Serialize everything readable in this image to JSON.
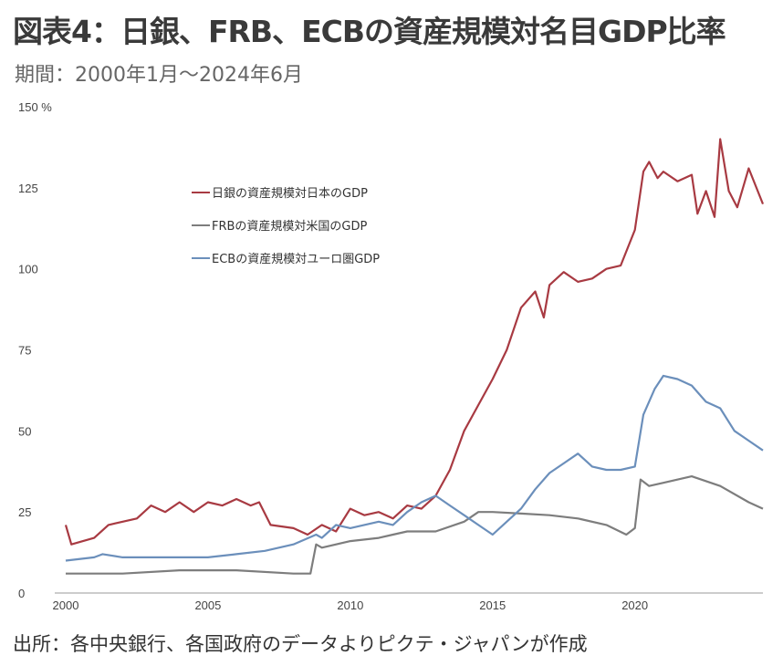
{
  "title": "図表4：日銀、FRB、ECBの資産規模対名目GDP比率",
  "subtitle": "期間：2000年1月～2024年6月",
  "source": "出所：各中央銀行、各国政府のデータよりピクテ・ジャパンが作成",
  "chart_data": {
    "type": "line",
    "title": "図表4：日銀、FRB、ECBの資産規模対名目GDP比率",
    "ylabel_unit": "%",
    "xlim": [
      2000,
      2024.5
    ],
    "ylim": [
      0,
      150
    ],
    "xticks": [
      "2000",
      "2005",
      "2010",
      "2015",
      "2020"
    ],
    "yticks": [
      "0",
      "25",
      "50",
      "75",
      "100",
      "125",
      "150"
    ],
    "grid": false,
    "legend_placement": "top-left",
    "series": [
      {
        "name": "日銀の資産規模対日本のGDP",
        "color": "#a83a42",
        "x": [
          2000,
          2000.2,
          2001,
          2001.5,
          2002.5,
          2003,
          2003.5,
          2004,
          2004.5,
          2005,
          2005.5,
          2006,
          2006.5,
          2006.8,
          2007.2,
          2008,
          2008.5,
          2009,
          2009.5,
          2010,
          2010.5,
          2011,
          2011.5,
          2012,
          2012.5,
          2013,
          2013.5,
          2014,
          2014.5,
          2015,
          2015.5,
          2016,
          2016.5,
          2016.8,
          2017,
          2017.5,
          2018,
          2018.5,
          2019,
          2019.5,
          2020,
          2020.3,
          2020.5,
          2020.8,
          2021,
          2021.5,
          2022,
          2022.2,
          2022.5,
          2022.8,
          2023,
          2023.3,
          2023.6,
          2024,
          2024.5
        ],
        "values": [
          21,
          15,
          17,
          21,
          23,
          27,
          25,
          28,
          25,
          28,
          27,
          29,
          27,
          28,
          21,
          20,
          18,
          21,
          19,
          26,
          24,
          25,
          23,
          27,
          26,
          30,
          38,
          50,
          58,
          66,
          75,
          88,
          93,
          85,
          95,
          99,
          96,
          97,
          100,
          101,
          112,
          130,
          133,
          128,
          130,
          127,
          129,
          117,
          124,
          116,
          140,
          124,
          119,
          131,
          120
        ]
      },
      {
        "name": "FRBの資産規模対米国のGDP",
        "color": "#7d7d7d",
        "x": [
          2000,
          2002,
          2004,
          2006,
          2008,
          2008.6,
          2008.8,
          2009,
          2010,
          2011,
          2011.5,
          2012,
          2013,
          2014,
          2014.5,
          2015,
          2016,
          2017,
          2018,
          2019,
          2019.7,
          2020,
          2020.2,
          2020.5,
          2021,
          2022,
          2023,
          2024,
          2024.5
        ],
        "values": [
          6,
          6,
          7,
          7,
          6,
          6,
          15,
          14,
          16,
          17,
          18,
          19,
          19,
          22,
          25,
          25,
          24.5,
          24,
          23,
          21,
          18,
          20,
          35,
          33,
          34,
          36,
          33,
          28,
          26
        ]
      },
      {
        "name": "ECBの資産規模対ユーロ圏GDP",
        "color": "#6b8fbb",
        "x": [
          2000,
          2001,
          2001.3,
          2002,
          2004,
          2005,
          2006,
          2007,
          2008,
          2008.8,
          2009,
          2009.5,
          2010,
          2011,
          2011.5,
          2012,
          2012.5,
          2013,
          2013.5,
          2014,
          2014.5,
          2015,
          2015.5,
          2016,
          2016.5,
          2017,
          2017.5,
          2018,
          2018.5,
          2019,
          2019.5,
          2020,
          2020.3,
          2020.7,
          2021,
          2021.5,
          2022,
          2022.5,
          2023,
          2023.5,
          2024,
          2024.5
        ],
        "values": [
          10,
          11,
          12,
          11,
          11,
          11,
          12,
          13,
          15,
          18,
          17,
          21,
          20,
          22,
          21,
          25,
          28,
          30,
          27,
          24,
          21,
          18,
          22,
          26,
          32,
          37,
          40,
          43,
          39,
          38,
          38,
          39,
          55,
          63,
          67,
          66,
          64,
          59,
          57,
          50,
          47,
          44
        ]
      }
    ]
  }
}
